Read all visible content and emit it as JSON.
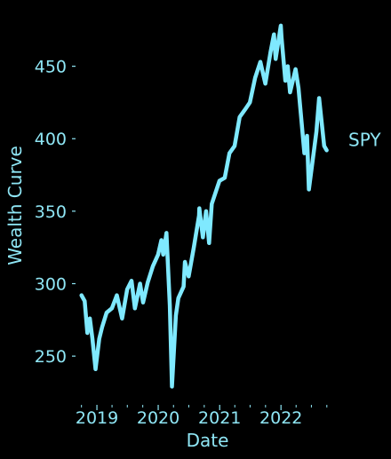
{
  "chart_data": {
    "type": "line",
    "xlabel": "Date",
    "ylabel": "Wealth Curve",
    "x_ticks": [
      "2019",
      "2020",
      "2021",
      "2022"
    ],
    "y_ticks": [
      250,
      300,
      350,
      400,
      450
    ],
    "xlim": [
      "2018-09-01",
      "2022-12-31"
    ],
    "ylim": [
      217,
      481
    ],
    "grid": false,
    "colors": {
      "background": "#000000",
      "line": "#7fe9ff",
      "text": "#8fe6f5"
    },
    "series": [
      {
        "name": "SPY",
        "x": [
          "2018-10-01",
          "2018-10-20",
          "2018-11-05",
          "2018-11-20",
          "2018-12-05",
          "2018-12-24",
          "2019-01-15",
          "2019-02-01",
          "2019-02-28",
          "2019-03-31",
          "2019-04-30",
          "2019-05-31",
          "2019-06-30",
          "2019-07-26",
          "2019-08-15",
          "2019-09-15",
          "2019-10-03",
          "2019-10-31",
          "2019-11-30",
          "2019-12-31",
          "2020-01-20",
          "2020-01-31",
          "2020-02-19",
          "2020-03-10",
          "2020-03-23",
          "2020-04-15",
          "2020-04-30",
          "2020-05-31",
          "2020-06-08",
          "2020-06-30",
          "2020-07-31",
          "2020-08-31",
          "2020-09-02",
          "2020-09-23",
          "2020-10-12",
          "2020-10-30",
          "2020-11-15",
          "2020-12-31",
          "2021-01-31",
          "2021-02-28",
          "2021-03-31",
          "2021-04-30",
          "2021-05-31",
          "2021-06-30",
          "2021-07-31",
          "2021-08-31",
          "2021-09-30",
          "2021-10-31",
          "2021-11-20",
          "2021-11-30",
          "2021-12-31",
          "2022-01-04",
          "2022-01-27",
          "2022-02-10",
          "2022-02-24",
          "2022-03-29",
          "2022-04-15",
          "2022-04-30",
          "2022-05-20",
          "2022-06-05",
          "2022-06-16",
          "2022-07-31",
          "2022-08-16",
          "2022-09-15",
          "2022-09-30"
        ],
        "y": [
          292,
          288,
          266,
          276,
          262,
          241,
          262,
          270,
          280,
          283,
          292,
          276,
          296,
          302,
          283,
          300,
          287,
          301,
          312,
          320,
          330,
          320,
          335,
          285,
          229,
          278,
          290,
          298,
          315,
          305,
          325,
          347,
          352,
          332,
          350,
          328,
          355,
          371,
          373,
          390,
          395,
          415,
          420,
          425,
          442,
          453,
          438,
          460,
          472,
          455,
          478,
          470,
          440,
          450,
          432,
          448,
          435,
          416,
          390,
          402,
          365,
          405,
          428,
          395,
          392
        ]
      }
    ]
  }
}
